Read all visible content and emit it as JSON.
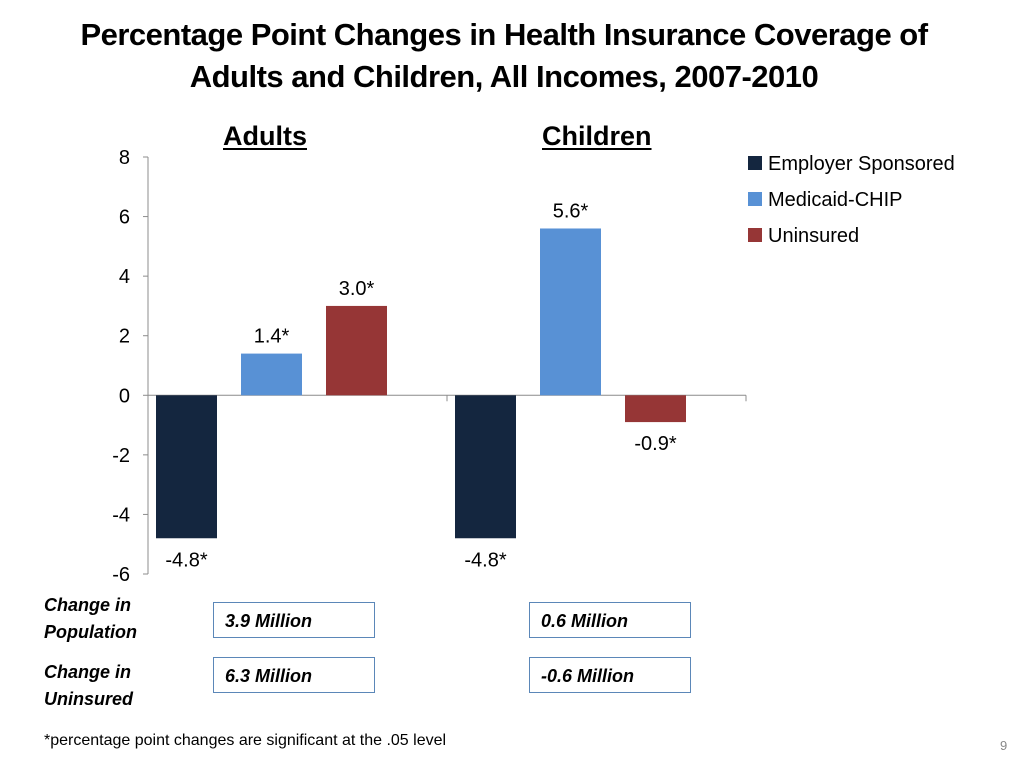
{
  "slide": {
    "title_line1": "Percentage Point Changes in Health Insurance Coverage of",
    "title_line2": "Adults and Children, All Incomes, 2007-2010",
    "footnote": "*percentage point changes are significant at the .05 level",
    "page_number": "9"
  },
  "chart_data": {
    "type": "bar",
    "categories": [
      "Adults",
      "Children"
    ],
    "series": [
      {
        "name": "Employer Sponsored",
        "values": [
          -4.8,
          -4.8
        ],
        "labels": [
          "-4.8*",
          "-4.8*"
        ],
        "color": "#14263f"
      },
      {
        "name": "Medicaid-CHIP",
        "values": [
          1.4,
          5.6
        ],
        "labels": [
          "1.4*",
          "5.6*"
        ],
        "color": "#5891d5"
      },
      {
        "name": "Uninsured",
        "values": [
          3.0,
          -0.9
        ],
        "labels": [
          "3.0*",
          "-0.9*"
        ],
        "color": "#963636"
      }
    ],
    "ylim": [
      -6,
      8
    ],
    "yticks": [
      "8",
      "6",
      "4",
      "2",
      "0",
      "-2",
      "-4",
      "-6"
    ],
    "ytick_values": [
      8,
      6,
      4,
      2,
      0,
      -2,
      -4,
      -6
    ],
    "legend_position": "top-right",
    "grid": false,
    "title": "",
    "xlabel": "",
    "ylabel": ""
  },
  "table": {
    "rows": [
      {
        "label_line1": "Change in",
        "label_line2": "Population",
        "values": [
          "3.9 Million",
          "0.6 Million"
        ]
      },
      {
        "label_line1": "Change in",
        "label_line2": "Uninsured",
        "values": [
          "6.3 Million",
          "-0.6 Million"
        ]
      }
    ]
  },
  "colors": {
    "axis": "#8c8c8c",
    "box_border": "#5b87b8"
  }
}
